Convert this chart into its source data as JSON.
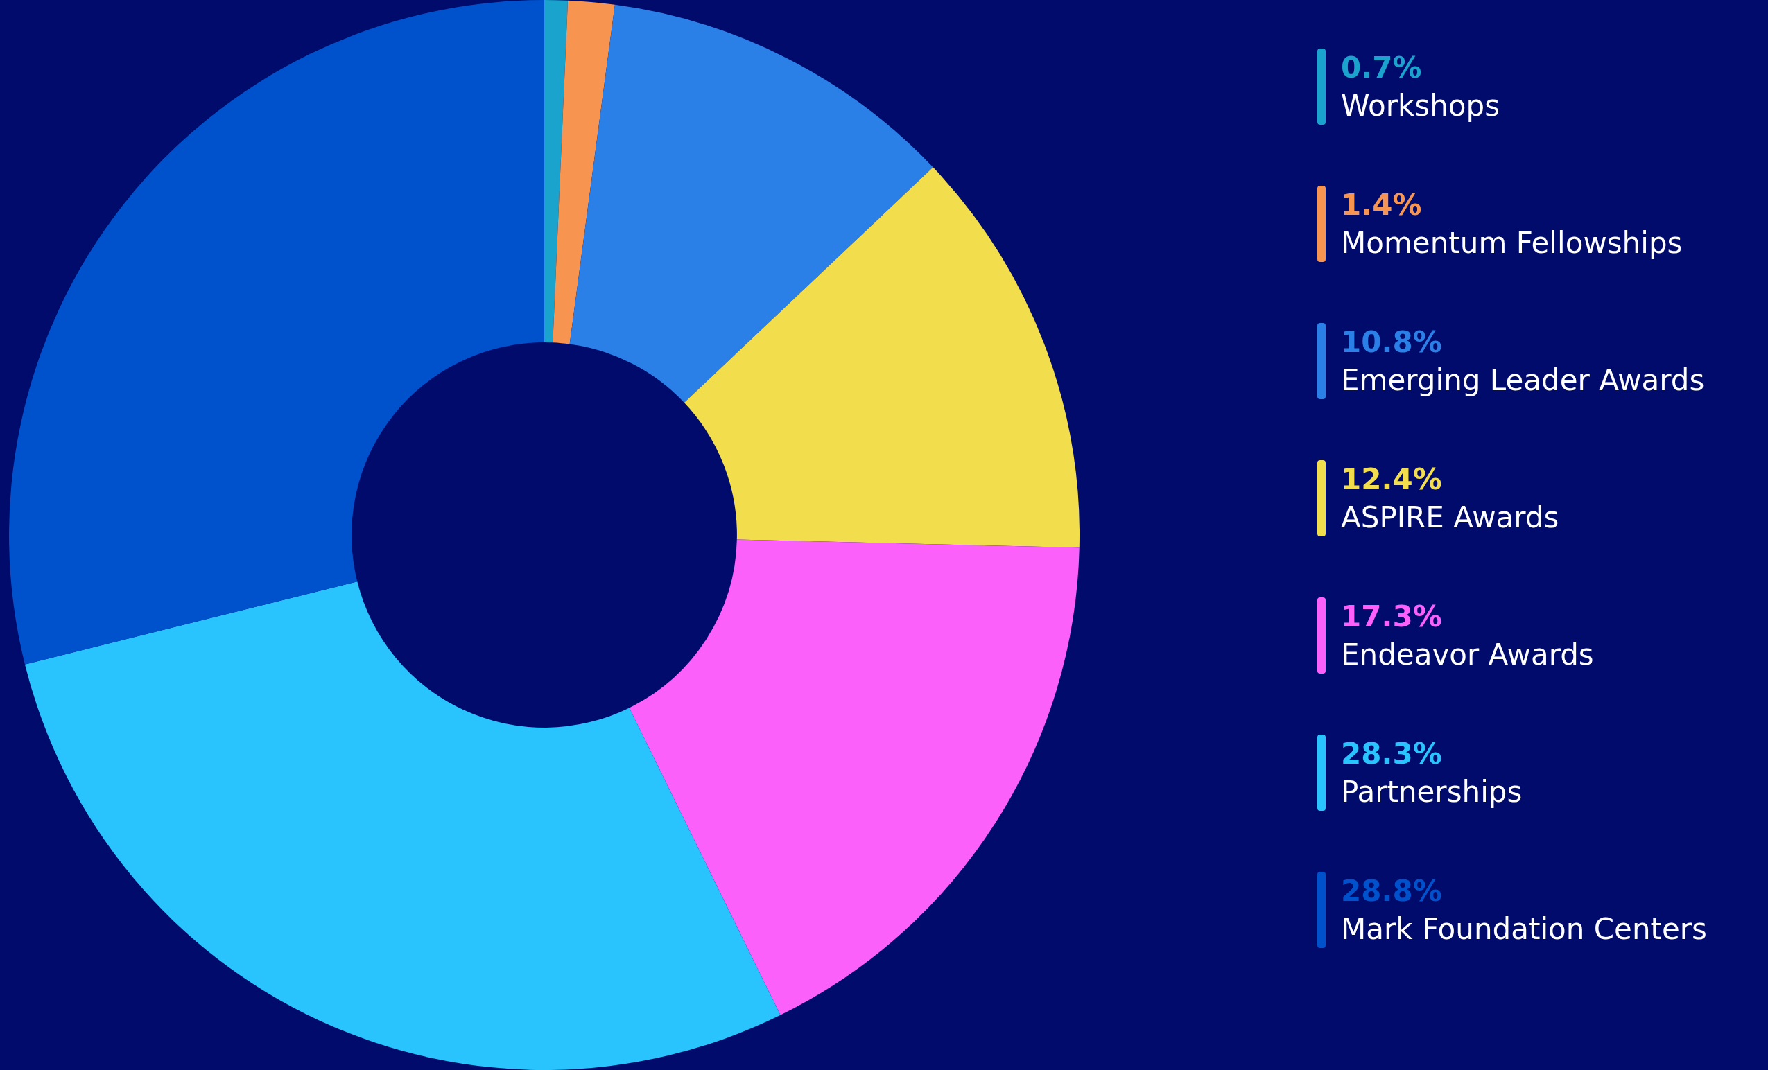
{
  "chart_data": {
    "type": "donut",
    "categories": [
      "Workshops",
      "Momentum Fellowships",
      "Emerging Leader Awards",
      "ASPIRE Awards",
      "Endeavor Awards",
      "Partnerships",
      "Mark Foundation Centers"
    ],
    "values": [
      0.7,
      1.4,
      10.8,
      12.4,
      17.3,
      28.3,
      28.8
    ],
    "colors": [
      "#1aa3cc",
      "#f7944f",
      "#2b80e8",
      "#f2dd4c",
      "#fb60fb",
      "#29c4fe",
      "#0052cc"
    ],
    "value_labels": [
      "0.7%",
      "1.4%",
      "10.8%",
      "12.4%",
      "17.3%",
      "28.3%",
      "28.8%"
    ],
    "legend": "right"
  }
}
